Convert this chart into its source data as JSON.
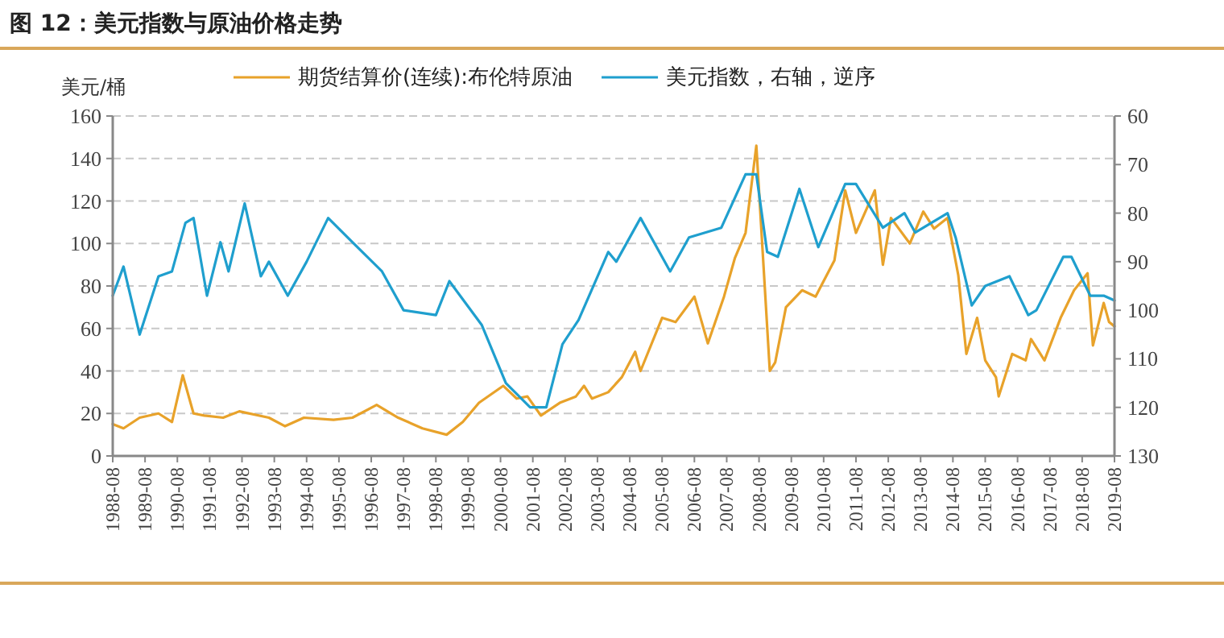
{
  "chart_data": {
    "type": "line",
    "title": "图 12：美元指数与原油价格走势",
    "ylabel": "美元/桶",
    "legend": "top",
    "grid": "y",
    "line_style": "solid",
    "xlim": [
      "1988-08",
      "2019-08"
    ],
    "xticks": [
      "1988-08",
      "1989-08",
      "1990-08",
      "1991-08",
      "1992-08",
      "1993-08",
      "1994-08",
      "1995-08",
      "1996-08",
      "1997-08",
      "1998-08",
      "1999-08",
      "2000-08",
      "2001-08",
      "2002-08",
      "2003-08",
      "2004-08",
      "2005-08",
      "2006-08",
      "2007-08",
      "2008-08",
      "2009-08",
      "2010-08",
      "2011-08",
      "2012-08",
      "2013-08",
      "2014-08",
      "2015-08",
      "2016-08",
      "2017-08",
      "2018-08",
      "2019-08"
    ],
    "ylim": [
      0,
      160
    ],
    "yticks": [
      0,
      20,
      40,
      60,
      80,
      100,
      120,
      140,
      160
    ],
    "y2lim": [
      130,
      60
    ],
    "y2ticks": [
      60,
      70,
      80,
      90,
      100,
      110,
      120,
      130
    ],
    "series": [
      {
        "name": "期货结算价(连续):布伦特原油",
        "color": "#e8a22a",
        "x": [
          "1988-08",
          "1988-12",
          "1989-06",
          "1990-01",
          "1990-06",
          "1990-10",
          "1991-02",
          "1991-06",
          "1992-01",
          "1992-07",
          "1993-06",
          "1993-12",
          "1994-07",
          "1995-06",
          "1996-01",
          "1996-10",
          "1997-06",
          "1998-03",
          "1998-12",
          "1999-06",
          "1999-12",
          "2000-09",
          "2001-02",
          "2001-06",
          "2001-11",
          "2002-06",
          "2002-12",
          "2003-03",
          "2003-06",
          "2003-12",
          "2004-05",
          "2004-10",
          "2004-12",
          "2005-08",
          "2006-01",
          "2006-08",
          "2007-01",
          "2007-07",
          "2007-11",
          "2008-03",
          "2008-07",
          "2008-12",
          "2009-02",
          "2009-06",
          "2009-12",
          "2010-05",
          "2010-12",
          "2011-04",
          "2011-08",
          "2012-03",
          "2012-06",
          "2012-09",
          "2013-04",
          "2013-09",
          "2014-01",
          "2014-06",
          "2014-10",
          "2015-01",
          "2015-05",
          "2015-08",
          "2015-12",
          "2016-01",
          "2016-06",
          "2016-11",
          "2017-01",
          "2017-06",
          "2017-12",
          "2018-05",
          "2018-10",
          "2018-12",
          "2019-04",
          "2019-06",
          "2019-08"
        ],
        "values": [
          15,
          13,
          18,
          20,
          16,
          38,
          20,
          19,
          18,
          21,
          18,
          14,
          18,
          17,
          18,
          24,
          18,
          13,
          10,
          16,
          25,
          33,
          27,
          28,
          19,
          25,
          28,
          33,
          27,
          30,
          37,
          49,
          40,
          65,
          63,
          75,
          53,
          75,
          93,
          105,
          146,
          40,
          44,
          70,
          78,
          75,
          92,
          125,
          105,
          125,
          90,
          112,
          100,
          115,
          107,
          112,
          85,
          48,
          65,
          45,
          37,
          28,
          48,
          45,
          55,
          45,
          65,
          78,
          86,
          52,
          72,
          63,
          61
        ]
      },
      {
        "name": "美元指数，右轴，逆序",
        "color": "#1f9fce",
        "axis": "y2",
        "x": [
          "1988-08",
          "1988-12",
          "1989-06",
          "1990-01",
          "1990-06",
          "1990-11",
          "1991-02",
          "1991-07",
          "1991-12",
          "1992-03",
          "1992-09",
          "1993-03",
          "1993-06",
          "1994-01",
          "1994-08",
          "1995-04",
          "1996-01",
          "1996-12",
          "1997-08",
          "1998-08",
          "1999-01",
          "2000-01",
          "2000-10",
          "2001-07",
          "2002-01",
          "2002-07",
          "2003-01",
          "2003-12",
          "2004-03",
          "2004-12",
          "2005-11",
          "2006-06",
          "2007-06",
          "2008-03",
          "2008-07",
          "2008-11",
          "2009-03",
          "2009-11",
          "2010-06",
          "2011-04",
          "2011-08",
          "2012-06",
          "2013-02",
          "2013-06",
          "2014-06",
          "2014-09",
          "2015-03",
          "2015-08",
          "2016-05",
          "2016-12",
          "2017-03",
          "2018-01",
          "2018-04",
          "2018-11",
          "2019-04",
          "2019-08"
        ],
        "values": [
          97,
          91,
          105,
          93,
          92,
          82,
          81,
          97,
          86,
          92,
          78,
          93,
          90,
          97,
          90,
          81,
          86,
          92,
          100,
          101,
          94,
          103,
          115,
          120,
          120,
          107,
          102,
          88,
          90,
          81,
          92,
          85,
          83,
          72,
          72,
          88,
          89,
          75,
          87,
          74,
          74,
          83,
          80,
          84,
          80,
          85,
          99,
          95,
          93,
          101,
          100,
          89,
          89,
          97,
          97,
          98
        ]
      }
    ]
  }
}
